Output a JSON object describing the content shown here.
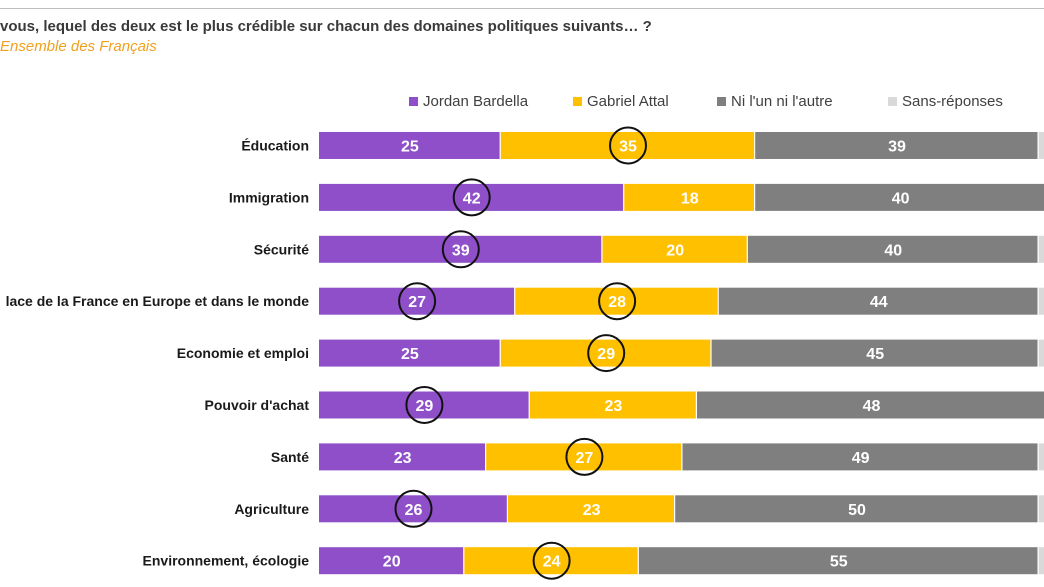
{
  "chart_data": {
    "type": "bar",
    "orientation": "horizontal-stacked",
    "title": "vous, lequel des deux est le plus crédible sur chacun des domaines politiques suivants… ?",
    "subtitle": "Ensemble des Français",
    "categories": [
      "Éducation",
      "Immigration",
      "Sécurité",
      "lace de la France en Europe et dans le monde",
      "Economie et emploi",
      "Pouvoir d'achat",
      "Santé",
      "Agriculture",
      "Environnement, écologie"
    ],
    "series": [
      {
        "name": "Jordan Bardella",
        "color": "#8e4fc8",
        "values": [
          25,
          42,
          39,
          27,
          25,
          29,
          23,
          26,
          20
        ]
      },
      {
        "name": "Gabriel Attal",
        "color": "#ffc000",
        "values": [
          35,
          18,
          20,
          28,
          29,
          23,
          27,
          23,
          24
        ]
      },
      {
        "name": "Ni l'un ni l'autre",
        "color": "#7f7f7f",
        "values": [
          39,
          40,
          40,
          44,
          45,
          48,
          49,
          50,
          55
        ]
      },
      {
        "name": "Sans-réponses",
        "color": "#d9d9d9",
        "values": [
          1,
          0,
          1,
          1,
          1,
          0,
          1,
          1,
          1
        ]
      }
    ],
    "highlighted": [
      {
        "category": "Éducation",
        "series": "Gabriel Attal"
      },
      {
        "category": "Immigration",
        "series": "Jordan Bardella"
      },
      {
        "category": "Sécurité",
        "series": "Jordan Bardella"
      },
      {
        "category": "lace de la France en Europe et dans le monde",
        "series": "Jordan Bardella"
      },
      {
        "category": "lace de la France en Europe et dans le monde",
        "series": "Gabriel Attal"
      },
      {
        "category": "Economie et emploi",
        "series": "Gabriel Attal"
      },
      {
        "category": "Pouvoir d'achat",
        "series": "Jordan Bardella"
      },
      {
        "category": "Santé",
        "series": "Gabriel Attal"
      },
      {
        "category": "Agriculture",
        "series": "Jordan Bardella"
      },
      {
        "category": "Environnement, écologie",
        "series": "Gabriel Attal"
      }
    ],
    "xlim": [
      0,
      100
    ],
    "legend_position": "top",
    "grid": false
  }
}
